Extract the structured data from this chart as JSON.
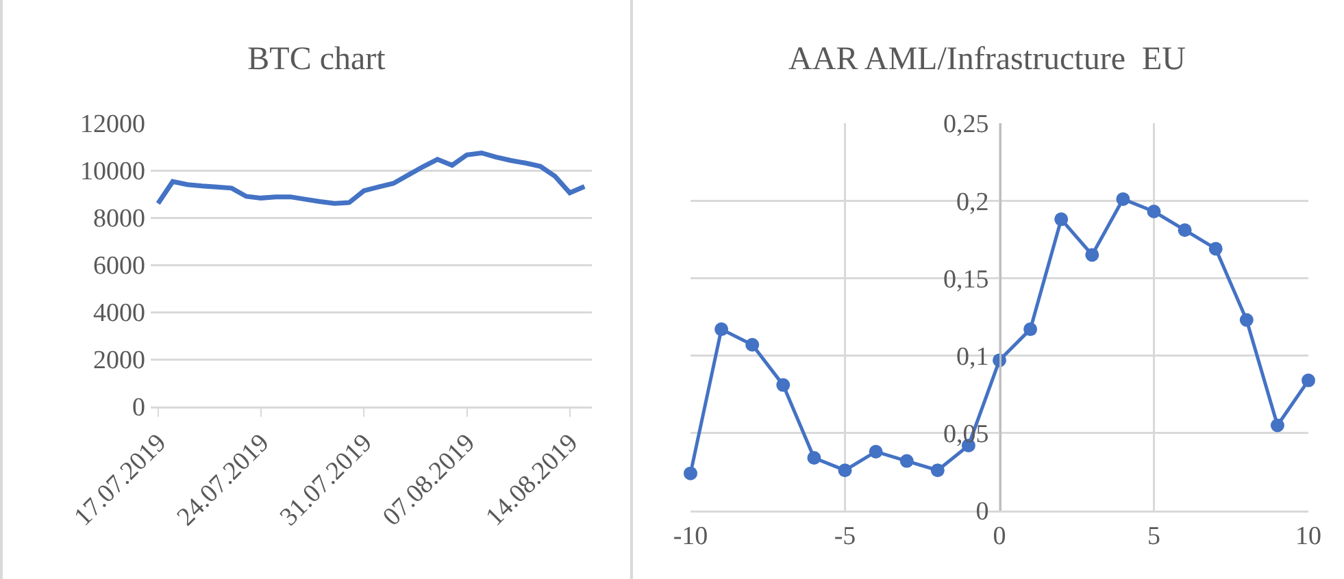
{
  "chart_data": [
    {
      "type": "line",
      "title": "BTC chart",
      "x": [
        "2019-07-17",
        "2019-07-18",
        "2019-07-19",
        "2019-07-20",
        "2019-07-21",
        "2019-07-22",
        "2019-07-23",
        "2019-07-24",
        "2019-07-25",
        "2019-07-26",
        "2019-07-27",
        "2019-07-28",
        "2019-07-29",
        "2019-07-30",
        "2019-07-31",
        "2019-08-01",
        "2019-08-02",
        "2019-08-03",
        "2019-08-04",
        "2019-08-05",
        "2019-08-06",
        "2019-08-07",
        "2019-08-08",
        "2019-08-09",
        "2019-08-10",
        "2019-08-11",
        "2019-08-12",
        "2019-08-13",
        "2019-08-14",
        "2019-08-15"
      ],
      "series": [
        {
          "color": "#4472c4",
          "values": [
            8600,
            9530,
            9400,
            9340,
            9300,
            9250,
            8900,
            8830,
            8880,
            8880,
            8780,
            8680,
            8600,
            8640,
            9140,
            9300,
            9450,
            9800,
            10150,
            10470,
            10220,
            10660,
            10740,
            10560,
            10420,
            10310,
            10170,
            9750,
            9050,
            9320
          ]
        }
      ],
      "xlim": [
        "2019-07-16T12:00",
        "2019-08-15T12:00"
      ],
      "xticks": [
        {
          "value": "2019-07-17",
          "label": "17.07.2019"
        },
        {
          "value": "2019-07-24",
          "label": "24.07.2019"
        },
        {
          "value": "2019-07-31",
          "label": "31.07.2019"
        },
        {
          "value": "2019-08-07",
          "label": "07.08.2019"
        },
        {
          "value": "2019-08-14",
          "label": "14.08.2019"
        }
      ],
      "ylim": [
        0,
        12000
      ],
      "yticks": [
        0,
        2000,
        4000,
        6000,
        8000,
        10000,
        12000
      ],
      "grid": "y",
      "marker": "none",
      "line_style": "solid"
    },
    {
      "type": "line",
      "title": "AAR AML/Infrastructure  EU",
      "x": [
        -10,
        -9,
        -8,
        -7,
        -6,
        -5,
        -4,
        -3,
        -2,
        -1,
        0,
        1,
        2,
        3,
        4,
        5,
        6,
        7,
        8,
        9,
        10
      ],
      "series": [
        {
          "color": "#4472c4",
          "values": [
            0.024,
            0.117,
            0.107,
            0.081,
            0.034,
            0.026,
            0.038,
            0.032,
            0.026,
            0.042,
            0.097,
            0.117,
            0.188,
            0.165,
            0.201,
            0.193,
            0.181,
            0.169,
            0.123,
            0.055,
            0.084
          ]
        }
      ],
      "xlim": [
        -10,
        10
      ],
      "xticks": [
        -10,
        -5,
        0,
        5,
        10
      ],
      "ylim": [
        0,
        0.25
      ],
      "yticks": [
        {
          "value": 0,
          "label": "0"
        },
        {
          "value": 0.05,
          "label": "0,05"
        },
        {
          "value": 0.1,
          "label": "0,1"
        },
        {
          "value": 0.15,
          "label": "0,15"
        },
        {
          "value": 0.2,
          "label": "0,2"
        },
        {
          "value": 0.25,
          "label": "0,25"
        }
      ],
      "grid": true,
      "marker": "circle",
      "line_style": "solid"
    }
  ]
}
